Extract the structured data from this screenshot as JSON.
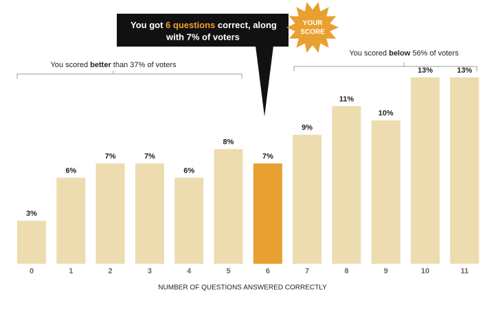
{
  "chart_data": {
    "type": "bar",
    "categories": [
      "0",
      "1",
      "2",
      "3",
      "4",
      "5",
      "6",
      "7",
      "8",
      "9",
      "10",
      "11"
    ],
    "values": [
      3,
      6,
      7,
      7,
      6,
      8,
      7,
      9,
      11,
      10,
      13,
      13
    ],
    "value_labels": [
      "3%",
      "6%",
      "7%",
      "7%",
      "6%",
      "8%",
      "7%",
      "9%",
      "11%",
      "10%",
      "13%",
      "13%"
    ],
    "color": "#ecdcb0",
    "highlight_index": 6,
    "highlight_color": "#e8a030",
    "x_label": "NUMBER OF QUESTIONS ANSWERED CORRECTLY",
    "callout": [
      "You got ",
      "6 questions",
      " correct, along",
      "with 7% of voters"
    ],
    "badge": [
      "YOUR",
      "SCORE"
    ],
    "annotation_left": [
      "You scored ",
      "better",
      " than 37% of voters"
    ],
    "annotation_right": [
      "You scored ",
      "below",
      " 56% of voters"
    ]
  }
}
